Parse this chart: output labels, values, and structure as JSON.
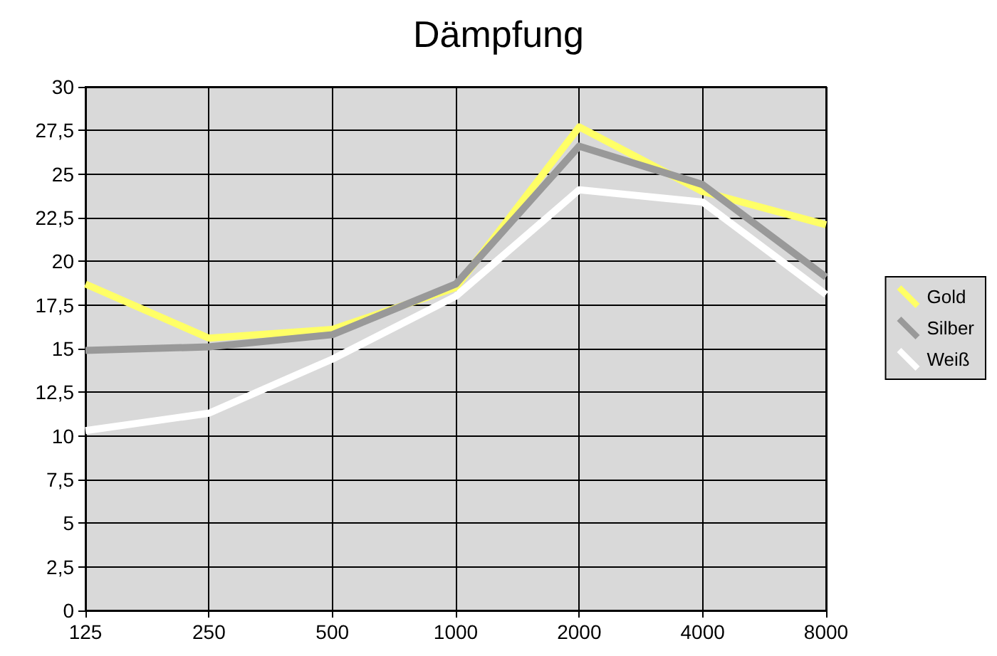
{
  "chart_data": {
    "type": "line",
    "title": "Dämpfung",
    "categories": [
      "125",
      "250",
      "500",
      "1000",
      "2000",
      "4000",
      "8000"
    ],
    "series": [
      {
        "name": "Gold",
        "color": "#ffff66",
        "values": [
          18.7,
          15.6,
          16.1,
          18.5,
          27.7,
          24.0,
          22.1
        ]
      },
      {
        "name": "Silber",
        "color": "#999999",
        "values": [
          14.9,
          15.1,
          15.8,
          18.7,
          26.6,
          24.4,
          19.1
        ]
      },
      {
        "name": "Weiß",
        "color": "#ffffff",
        "values": [
          10.3,
          11.3,
          14.4,
          18.0,
          24.1,
          23.4,
          18.1
        ]
      }
    ],
    "ylim": [
      0,
      30
    ],
    "yticks": [
      0,
      {
        "value": 2.5,
        "label": "2,5"
      },
      5,
      {
        "value": 7.5,
        "label": "7,5"
      },
      10,
      {
        "value": 12.5,
        "label": "12,5"
      },
      15,
      {
        "value": 17.5,
        "label": "17,5"
      },
      20,
      {
        "value": 22.5,
        "label": "22,5"
      },
      25,
      {
        "value": 27.5,
        "label": "27,5"
      },
      30
    ],
    "grid": true,
    "legend": "right",
    "marker": "none",
    "line_style": "solid"
  }
}
